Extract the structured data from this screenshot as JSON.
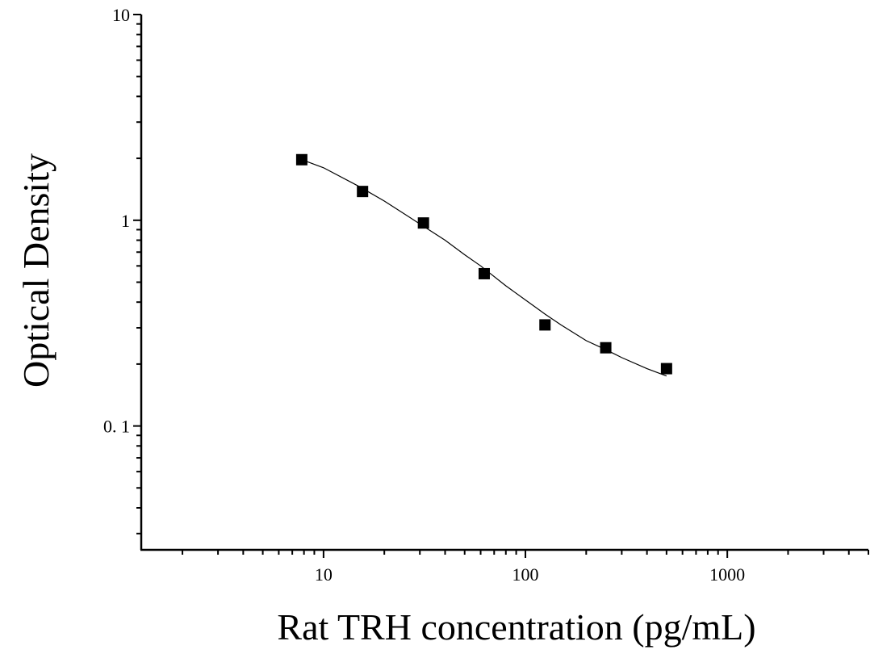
{
  "chart_data": {
    "type": "scatter",
    "title": "",
    "xlabel": "Rat TRH concentration (pg/mL)",
    "ylabel": "Optical Density",
    "x_scale": "log",
    "y_scale": "log",
    "xlim": [
      1.25,
      5000
    ],
    "ylim": [
      0.025,
      10
    ],
    "x_ticks": [
      10,
      100,
      1000
    ],
    "x_tick_labels": [
      "10",
      "100",
      "1000"
    ],
    "y_ticks": [
      0.1,
      1,
      10
    ],
    "y_tick_labels": [
      "0. 1",
      "1",
      "10"
    ],
    "grid": false,
    "legend": "none",
    "marker_color": "#000000",
    "line_color": "#000000",
    "series": [
      {
        "x": [
          7.8,
          15.6,
          31.25,
          62.5,
          125,
          250,
          500
        ],
        "y": [
          1.97,
          1.38,
          0.97,
          0.55,
          0.31,
          0.24,
          0.19
        ]
      }
    ],
    "fit_curve": {
      "x": [
        7.8,
        10,
        15,
        20,
        30,
        40,
        50,
        60,
        80,
        100,
        125,
        150,
        200,
        250,
        300,
        400,
        500
      ],
      "y": [
        1.97,
        1.8,
        1.46,
        1.24,
        0.96,
        0.8,
        0.68,
        0.6,
        0.48,
        0.41,
        0.35,
        0.31,
        0.26,
        0.235,
        0.215,
        0.19,
        0.175
      ]
    }
  }
}
